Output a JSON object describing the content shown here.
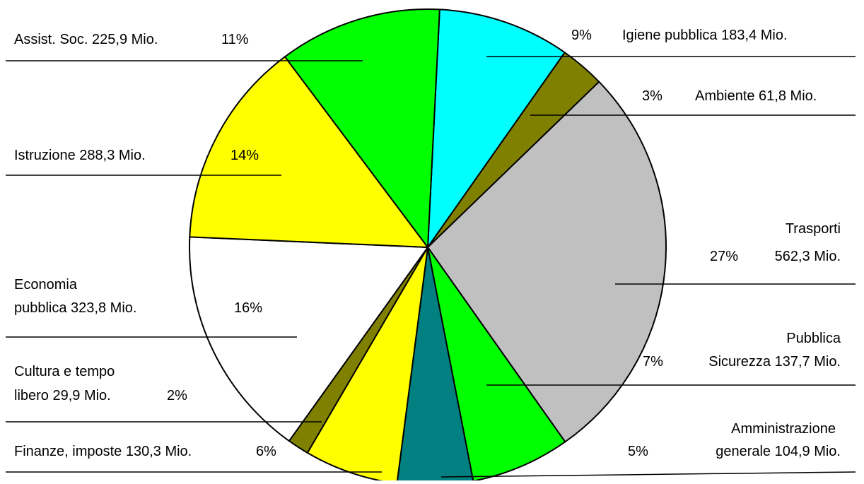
{
  "chart_data": {
    "type": "pie",
    "unit": "Mio.",
    "slices": [
      {
        "key": "igiene",
        "category": "Igiene pubblica",
        "value": 183.4,
        "value_label": "183,4 Mio.",
        "percent_label": "9%",
        "color": "#00FFFF"
      },
      {
        "key": "ambiente",
        "category": "Ambiente",
        "value": 61.8,
        "value_label": "61,8 Mio.",
        "percent_label": "3%",
        "color": "#808000"
      },
      {
        "key": "trasporti",
        "category": "Trasporti",
        "value": 562.3,
        "value_label": "562,3 Mio.",
        "percent_label": "27%",
        "color": "#C0C0C0"
      },
      {
        "key": "sicurezza",
        "category": "Pubblica Sicurezza",
        "value": 137.7,
        "value_label": "137,7 Mio.",
        "percent_label": "7%",
        "color": "#00FF00"
      },
      {
        "key": "amministrazione",
        "category": "Amministrazione generale",
        "value": 104.9,
        "value_label": "104,9 Mio.",
        "percent_label": "5%",
        "color": "#008080"
      },
      {
        "key": "finanze",
        "category": "Finanze, imposte",
        "value": 130.3,
        "value_label": "130,3 Mio.",
        "percent_label": "6%",
        "color": "#FFFF00"
      },
      {
        "key": "cultura",
        "category": "Cultura e tempo libero",
        "value": 29.9,
        "value_label": "29,9 Mio.",
        "percent_label": "2%",
        "color": "#808000"
      },
      {
        "key": "economia",
        "category": "Economia pubblica",
        "value": 323.8,
        "value_label": "323,8 Mio.",
        "percent_label": "16%",
        "color": "#FFFFFF"
      },
      {
        "key": "istruzione",
        "category": "Istruzione",
        "value": 288.3,
        "value_label": "288,3 Mio.",
        "percent_label": "14%",
        "color": "#FFFF00"
      },
      {
        "key": "assistenza",
        "category": "Assist. Soc.",
        "value": 225.9,
        "value_label": "225,9 Mio.",
        "percent_label": "11%",
        "color": "#00FF00"
      }
    ]
  },
  "labels": {
    "igiene_pct": "9%",
    "igiene_text": "Igiene pubblica 183,4 Mio.",
    "ambiente_pct": "3%",
    "ambiente_text": "Ambiente 61,8 Mio.",
    "trasporti_line1": "Trasporti",
    "trasporti_pct": "27%",
    "trasporti_value": "562,3 Mio.",
    "sicurezza_line1": "Pubblica",
    "sicurezza_pct": "7%",
    "sicurezza_line2": "Sicurezza 137,7 Mio.",
    "amministrazione_line1": "Amministrazione",
    "amministrazione_pct": "5%",
    "amministrazione_line2": "generale 104,9 Mio.",
    "finanze_text": "Finanze, imposte 130,3 Mio.",
    "finanze_pct": "6%",
    "cultura_line1": "Cultura e tempo",
    "cultura_line2": "libero 29,9 Mio.",
    "cultura_pct": "2%",
    "economia_line1": "Economia",
    "economia_line2": "pubblica 323,8 Mio.",
    "economia_pct": "16%",
    "istruzione_text": "Istruzione 288,3 Mio.",
    "istruzione_pct": "14%",
    "assistenza_text": "Assist. Soc. 225,9 Mio.",
    "assistenza_pct": "11%"
  }
}
